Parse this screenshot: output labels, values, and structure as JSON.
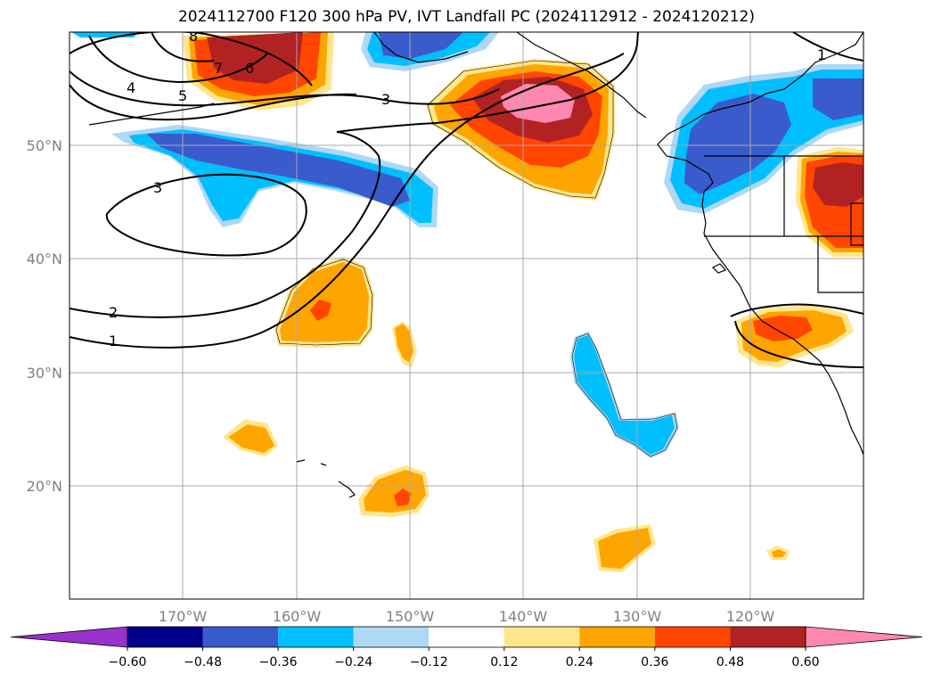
{
  "title": "2024112700 F120 300 hPa PV, IVT Landfall PC (2024112912 - 2024120212)",
  "map": {
    "lat_labels": [
      "50°N",
      "40°N",
      "30°N",
      "20°N"
    ],
    "lon_labels": [
      "170°W",
      "160°W",
      "150°W",
      "140°W",
      "130°W",
      "120°W"
    ],
    "grid": true,
    "contour_labels": [
      "1",
      "2",
      "3",
      "3",
      "4",
      "5",
      "6",
      "7",
      "8",
      "1"
    ]
  },
  "colorbar": {
    "ticks": [
      "−0.60",
      "−0.48",
      "−0.36",
      "−0.24",
      "−0.12",
      "0.12",
      "0.24",
      "0.36",
      "0.48",
      "0.60"
    ],
    "colors": [
      "#9932cc",
      "#00008b",
      "#3a5bcc",
      "#00bfff",
      "#add8f6",
      "#ffffff",
      "#ffe68c",
      "#ffa500",
      "#ff4500",
      "#b22222",
      "#ff88b0"
    ],
    "extend": "both"
  }
}
